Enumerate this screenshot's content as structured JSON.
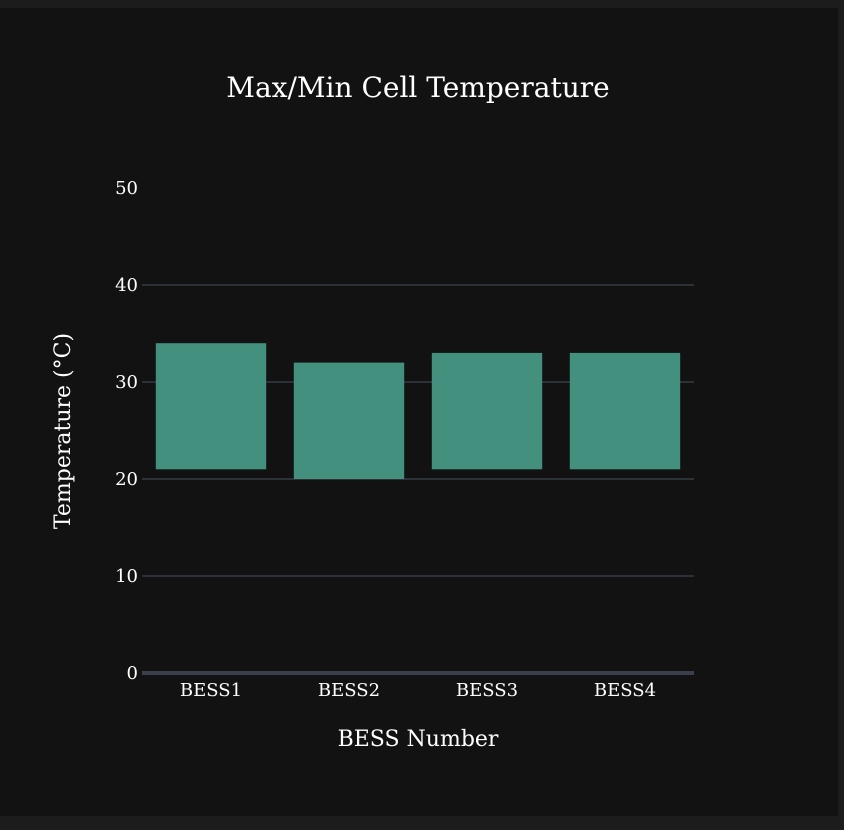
{
  "chart_data": {
    "type": "bar",
    "title": "Max/Min Cell Temperature",
    "xlabel": "BESS Number",
    "ylabel": "Temperature (°C)",
    "categories": [
      "BESS1",
      "BESS2",
      "BESS3",
      "BESS4"
    ],
    "series": [
      {
        "min": [
          21,
          20,
          21,
          21
        ],
        "max": [
          34,
          32,
          33,
          33
        ]
      }
    ],
    "ylim": [
      0,
      50
    ],
    "yticks": [
      0,
      10,
      20,
      30,
      40,
      50
    ],
    "grid": true,
    "bar_color": "#42907d",
    "grid_color": "#2c3138",
    "zero_line_color": "#3a3f4d",
    "background_color": "#121212"
  }
}
